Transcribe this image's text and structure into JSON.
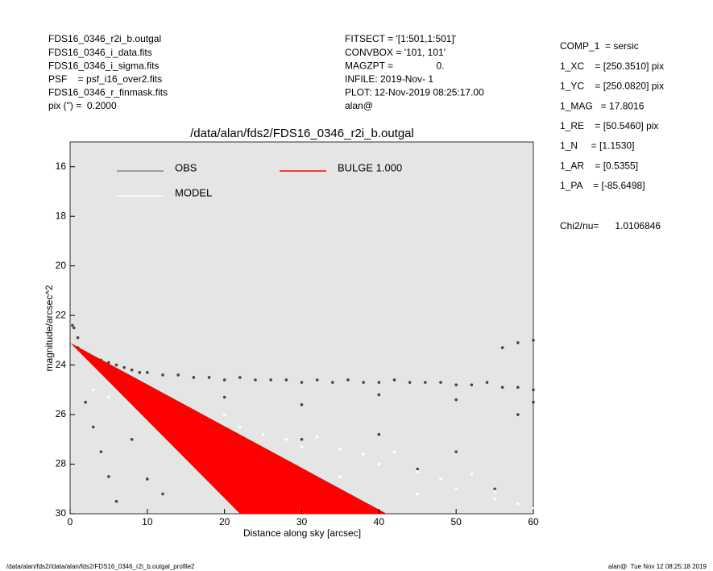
{
  "info_left": [
    "FDS16_0346_r2i_b.outgal",
    "FDS16_0346_i_data.fits",
    "FDS16_0346_i_sigma.fits",
    "PSF    = psf_i16_over2.fits",
    "FDS16_0346_r_finmask.fits",
    "pix (\") =  0.2000"
  ],
  "info_middle": [
    "FITSECT = '[1:501,1:501]'",
    "CONVBOX = '101, 101'",
    "MAGZPT =                0.",
    "INFILE: 2019-Nov- 1",
    "PLOT: 12-Nov-2019 08:25:17.00",
    "alan@"
  ],
  "info_right": [
    "COMP_1  = sersic",
    "1_XC    = [250.3510] pix",
    "1_YC    = [250.0820] pix",
    "1_MAG   = 17.8016",
    "1_RE    = [50.5460] pix",
    "1_N     = [1.1530]",
    "1_AR    = [0.5355]",
    "1_PA    = [-85.6498]"
  ],
  "chi2": "Chi2/nu=      1.0106846",
  "footer_left": "/data/alan/fds2//data/alan/fds2/FDS16_0346_r2i_b.outgal_profile2",
  "footer_right": "alan@  Tue Nov 12 08:25:18 2019",
  "chart_data": {
    "type": "scatter",
    "title": "/data/alan/fds2/FDS16_0346_r2i_b.outgal",
    "x_label": "Distance along sky [arcsec]",
    "y_label": "magnitude/arcsec^2",
    "xlim": [
      0,
      60
    ],
    "ylim": [
      30,
      15
    ],
    "xticks": [
      0,
      10,
      20,
      30,
      40,
      50,
      60
    ],
    "yticks": [
      16,
      18,
      20,
      22,
      24,
      26,
      28,
      30
    ],
    "series": [
      {
        "name": "OBS",
        "color": "#888888",
        "point_color": "#444444",
        "x": [
          1,
          2,
          3,
          4,
          5,
          6,
          7,
          8,
          9,
          10,
          12,
          14,
          16,
          18,
          20,
          22,
          24,
          26,
          28,
          30,
          32,
          34,
          36,
          38,
          40,
          42,
          44,
          46,
          48,
          50,
          52,
          54,
          56,
          58,
          60,
          2,
          3,
          4,
          5,
          6,
          8,
          10,
          12,
          15,
          18,
          20,
          25,
          30,
          35,
          40,
          45,
          50,
          55,
          58,
          60,
          1,
          0.5,
          0.3,
          56,
          58,
          60,
          20,
          30,
          40,
          50
        ],
        "values": [
          23.3,
          23.5,
          23.7,
          23.8,
          23.9,
          24.0,
          24.1,
          24.2,
          24.3,
          24.3,
          24.4,
          24.4,
          24.5,
          24.5,
          24.6,
          24.5,
          24.6,
          24.6,
          24.6,
          24.7,
          24.6,
          24.7,
          24.6,
          24.7,
          24.7,
          24.6,
          24.7,
          24.7,
          24.7,
          24.8,
          24.8,
          24.7,
          24.9,
          24.9,
          25.0,
          25.5,
          26.5,
          27.5,
          28.5,
          29.5,
          27,
          28.6,
          29.2,
          26,
          27.5,
          29,
          28.5,
          27,
          29.4,
          26.8,
          28.2,
          27.5,
          29,
          26,
          25.5,
          22.9,
          22.5,
          22.4,
          23.3,
          23.1,
          23.0,
          25.3,
          25.6,
          25.2,
          25.4
        ]
      },
      {
        "name": "MODEL",
        "color": "#ffffff",
        "point_color": "#ffffff",
        "x": [
          3,
          5,
          8,
          10,
          12,
          15,
          18,
          20,
          22,
          25,
          28,
          30,
          32,
          35,
          38,
          40,
          42,
          45,
          48,
          50,
          52,
          55,
          58,
          60,
          12,
          25,
          35,
          45,
          55
        ],
        "values": [
          25.0,
          25.3,
          25.6,
          25.8,
          25.5,
          25.9,
          26.2,
          26.0,
          26.5,
          26.8,
          27.0,
          27.3,
          26.9,
          27.4,
          27.6,
          28.0,
          27.5,
          28.3,
          28.6,
          29.0,
          28.4,
          29.4,
          29.6,
          29.8,
          26.6,
          27.5,
          28.5,
          29.2,
          29.1
        ]
      },
      {
        "name": "BULGE 1.000",
        "color": "#ff0000",
        "fill": true,
        "x": [
          0,
          41,
          22
        ],
        "values": [
          23.1,
          30,
          30
        ]
      }
    ],
    "background": "#e5e5e5"
  }
}
